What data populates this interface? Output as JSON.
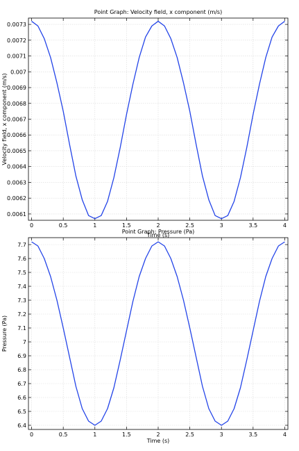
{
  "chart_data": [
    {
      "type": "line",
      "title": "Point Graph: Velocity field, x component (m/s)",
      "xlabel": "Time (s)",
      "ylabel": "Velocity field, x component (m/s)",
      "xlim": [
        -0.05,
        4.05
      ],
      "ylim": [
        0.00606,
        0.00734
      ],
      "xticks": [
        0,
        0.5,
        1,
        1.5,
        2,
        2.5,
        3,
        3.5,
        4
      ],
      "xtick_labels": [
        "0",
        "0.5",
        "1",
        "1.5",
        "2",
        "2.5",
        "3",
        "3.5",
        "4"
      ],
      "yticks": [
        0.0061,
        0.0062,
        0.0063,
        0.0064,
        0.0065,
        0.0066,
        0.0067,
        0.0068,
        0.0069,
        0.007,
        0.0071,
        0.0072,
        0.0073
      ],
      "ytick_labels": [
        "0.0061",
        "0.0062",
        "0.0063",
        "0.0064",
        "0.0065",
        "0.0066",
        "0.0067",
        "0.0068",
        "0.0069",
        "0.007",
        "0.0071",
        "0.0072",
        "0.0073"
      ],
      "grid": true,
      "color": "#2243e8",
      "series": [
        {
          "x": [
            0,
            0.1,
            0.2,
            0.3,
            0.4,
            0.5,
            0.6,
            0.7,
            0.8,
            0.9,
            1.0,
            1.1,
            1.2,
            1.3,
            1.4,
            1.5,
            1.6,
            1.7,
            1.8,
            1.9,
            2.0,
            2.1,
            2.2,
            2.3,
            2.4,
            2.5,
            2.6,
            2.7,
            2.8,
            2.9,
            3.0,
            3.1,
            3.2,
            3.3,
            3.4,
            3.5,
            3.6,
            3.7,
            3.8,
            3.9,
            4.0
          ],
          "values": [
            0.00732,
            0.00729,
            0.00721,
            0.00709,
            0.00693,
            0.00675,
            0.00654,
            0.00634,
            0.00619,
            0.00609,
            0.00607,
            0.00609,
            0.00618,
            0.00633,
            0.00652,
            0.00673,
            0.00692,
            0.00709,
            0.00722,
            0.00729,
            0.00732,
            0.00729,
            0.00721,
            0.00709,
            0.00693,
            0.00675,
            0.00654,
            0.00634,
            0.00619,
            0.00609,
            0.00607,
            0.00609,
            0.00618,
            0.00633,
            0.00652,
            0.00673,
            0.00692,
            0.00709,
            0.00722,
            0.00729,
            0.00732
          ]
        }
      ]
    },
    {
      "type": "line",
      "title": "Point Graph: Pressure (Pa)",
      "xlabel": "Time (s)",
      "ylabel": "Pressure (Pa)",
      "xlim": [
        -0.05,
        4.05
      ],
      "ylim": [
        6.37,
        7.75
      ],
      "xticks": [
        0,
        0.5,
        1,
        1.5,
        2,
        2.5,
        3,
        3.5,
        4
      ],
      "xtick_labels": [
        "0",
        "0.5",
        "1",
        "1.5",
        "2",
        "2.5",
        "3",
        "3.5",
        "4"
      ],
      "yticks": [
        6.4,
        6.5,
        6.6,
        6.7,
        6.8,
        6.9,
        7.0,
        7.1,
        7.2,
        7.3,
        7.4,
        7.5,
        7.6,
        7.7
      ],
      "ytick_labels": [
        "6.4",
        "6.5",
        "6.6",
        "6.7",
        "6.8",
        "6.9",
        "7",
        "7.1",
        "7.2",
        "7.3",
        "7.4",
        "7.5",
        "7.6",
        "7.7"
      ],
      "grid": true,
      "color": "#2243e8",
      "series": [
        {
          "x": [
            0,
            0.1,
            0.2,
            0.3,
            0.4,
            0.5,
            0.6,
            0.7,
            0.8,
            0.9,
            1.0,
            1.1,
            1.2,
            1.3,
            1.4,
            1.5,
            1.6,
            1.7,
            1.8,
            1.9,
            2.0,
            2.1,
            2.2,
            2.3,
            2.4,
            2.5,
            2.6,
            2.7,
            2.8,
            2.9,
            3.0,
            3.1,
            3.2,
            3.3,
            3.4,
            3.5,
            3.6,
            3.7,
            3.8,
            3.9,
            4.0
          ],
          "values": [
            7.72,
            7.69,
            7.6,
            7.47,
            7.3,
            7.1,
            6.89,
            6.68,
            6.52,
            6.43,
            6.4,
            6.43,
            6.52,
            6.67,
            6.87,
            7.08,
            7.29,
            7.47,
            7.6,
            7.69,
            7.72,
            7.69,
            7.6,
            7.47,
            7.3,
            7.1,
            6.89,
            6.68,
            6.52,
            6.43,
            6.4,
            6.43,
            6.52,
            6.67,
            6.87,
            7.08,
            7.29,
            7.47,
            7.6,
            7.69,
            7.72
          ]
        }
      ]
    }
  ]
}
